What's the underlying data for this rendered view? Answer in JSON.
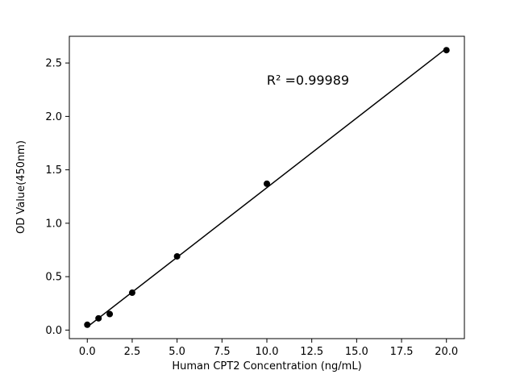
{
  "chart_data": {
    "type": "scatter",
    "title": "",
    "xlabel": "Human CPT2 Concentration (ng/mL)",
    "ylabel": "OD Value(450nm)",
    "annotation": "R² =0.99989",
    "x": [
      0,
      0.625,
      1.25,
      2.5,
      5,
      10,
      20
    ],
    "y": [
      0.05,
      0.11,
      0.15,
      0.35,
      0.69,
      1.37,
      2.62
    ],
    "xticks": [
      0.0,
      2.5,
      5.0,
      7.5,
      10.0,
      12.5,
      15.0,
      17.5,
      20.0
    ],
    "yticks": [
      0.0,
      0.5,
      1.0,
      1.5,
      2.0,
      2.5
    ],
    "xlim": [
      -1.0,
      21.0
    ],
    "ylim": [
      -0.08,
      2.75
    ],
    "line_color": "#000000",
    "marker_color": "#000000",
    "axis_color": "#000000",
    "grid": false,
    "legend": "none"
  }
}
